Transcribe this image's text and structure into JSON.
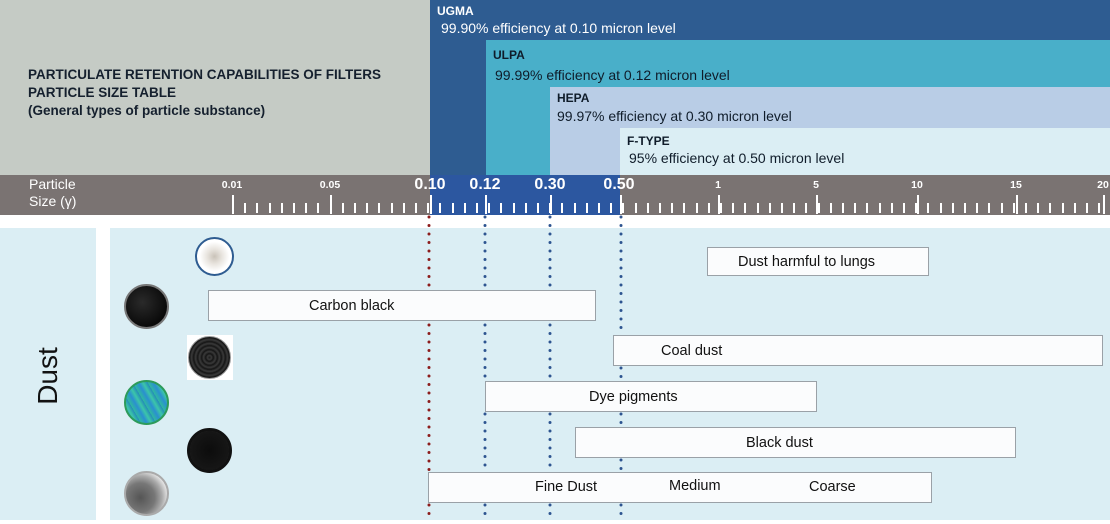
{
  "header": {
    "title_lines": [
      "PARTICULATE RETENTION CAPABILITIES OF FILTERS",
      "PARTICLE SIZE TABLE",
      "(General types of particle substance)"
    ]
  },
  "filters": [
    {
      "name": "UGMA",
      "description": "99.90% efficiency at 0.10 micron level",
      "color": "#2e5c91"
    },
    {
      "name": "ULPA",
      "description": "99.99% efficiency at 0.12 micron level",
      "color": "#49afc9"
    },
    {
      "name": "HEPA",
      "description": "99.97% efficiency at 0.30 micron level",
      "color": "#b9cde6"
    },
    {
      "name": "F-TYPE",
      "description": "95% efficiency at 0.50 micron level",
      "color": "#dbeef4"
    }
  ],
  "ruler": {
    "label_line1": "Particle",
    "label_line2": "Size (γ)",
    "ticks": [
      "0.01",
      "0.05",
      "0.10",
      "0.12",
      "0.30",
      "0.50",
      "1",
      "5",
      "10",
      "15",
      "20"
    ],
    "highlight_color": "#2c57a0",
    "bg_color": "#7a7372"
  },
  "category": {
    "label": "Dust"
  },
  "particles": [
    {
      "label": "Dust harmful to lungs",
      "icon": "dust-sample-icon"
    },
    {
      "label": "Carbon black",
      "icon": "carbon-black-icon"
    },
    {
      "label": "Coal dust",
      "icon": "coal-dust-icon"
    },
    {
      "label": "Dye pigments",
      "icon": "dye-pigment-icon"
    },
    {
      "label": "Black dust",
      "icon": "black-dust-icon"
    },
    {
      "label_fine": "Fine Dust",
      "label_medium": "Medium",
      "label_coarse": "Coarse",
      "icon": "grey-dust-icon"
    }
  ],
  "chart_data": {
    "type": "table",
    "title": "PARTICULATE RETENTION CAPABILITIES OF FILTERS - PARTICLE SIZE TABLE (General types of particle substance)",
    "xlabel": "Particle Size (μ)",
    "x_ticks": [
      "0.01",
      "0.05",
      "0.10",
      "0.12",
      "0.30",
      "0.50",
      "1",
      "5",
      "10",
      "15",
      "20"
    ],
    "filters": [
      {
        "name": "UGMA",
        "efficiency": "99.90%",
        "micron": 0.1
      },
      {
        "name": "ULPA",
        "efficiency": "99.99%",
        "micron": 0.12
      },
      {
        "name": "HEPA",
        "efficiency": "99.97%",
        "micron": 0.3
      },
      {
        "name": "F-TYPE",
        "efficiency": "95%",
        "micron": 0.5
      }
    ],
    "particle_ranges_micron": [
      {
        "name": "Dust harmful to lungs",
        "from": 1,
        "to": 10
      },
      {
        "name": "Carbon black",
        "from": 0.01,
        "to": 0.45
      },
      {
        "name": "Coal dust",
        "from": 0.5,
        "to": 20
      },
      {
        "name": "Dye pigments",
        "from": 0.12,
        "to": 5
      },
      {
        "name": "Black dust",
        "from": 0.35,
        "to": 15
      },
      {
        "name": "Fine Dust / Medium / Coarse",
        "from": 0.1,
        "to": 10
      }
    ]
  }
}
